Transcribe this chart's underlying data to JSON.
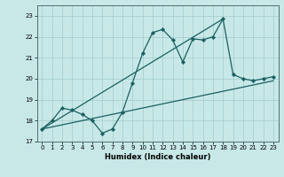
{
  "title": "",
  "xlabel": "Humidex (Indice chaleur)",
  "bg_color": "#c8e8e8",
  "grid_color": "#a8d0d0",
  "line_color": "#1a6060",
  "xlim": [
    -0.5,
    23.5
  ],
  "ylim": [
    17,
    23.5
  ],
  "xticks": [
    0,
    1,
    2,
    3,
    4,
    5,
    6,
    7,
    8,
    9,
    10,
    11,
    12,
    13,
    14,
    15,
    16,
    17,
    18,
    19,
    20,
    21,
    22,
    23
  ],
  "yticks": [
    17,
    18,
    19,
    20,
    21,
    22,
    23
  ],
  "series1_x": [
    0,
    1,
    2,
    3,
    4,
    5,
    6,
    7,
    8,
    9,
    10,
    11,
    12,
    13,
    14,
    15,
    16,
    17,
    18,
    19,
    20,
    21,
    22,
    23
  ],
  "series1_y": [
    17.6,
    18.0,
    18.6,
    18.5,
    18.3,
    18.0,
    17.4,
    17.6,
    18.4,
    19.8,
    21.2,
    22.2,
    22.35,
    21.85,
    20.8,
    21.9,
    21.85,
    22.0,
    22.85,
    20.2,
    20.0,
    19.9,
    20.0,
    20.1
  ],
  "series2_x": [
    0,
    23
  ],
  "series2_y": [
    17.6,
    19.9
  ],
  "series3_x": [
    0,
    18
  ],
  "series3_y": [
    17.6,
    22.85
  ]
}
